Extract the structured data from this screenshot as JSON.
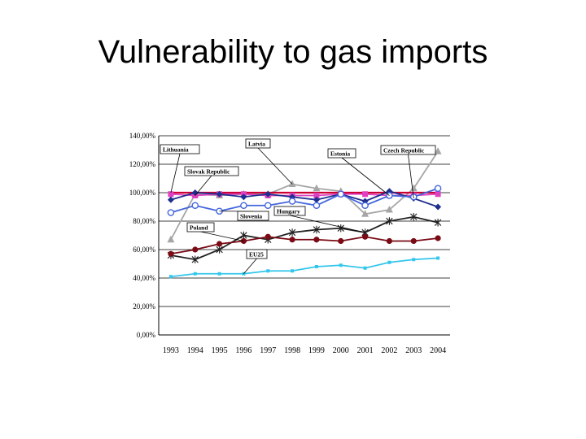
{
  "slide": {
    "title": "Vulnerability to gas imports"
  },
  "chart_data": {
    "type": "line",
    "title": "",
    "xlabel": "",
    "ylabel": "",
    "ylim": [
      0,
      140
    ],
    "grid": true,
    "y_ticks": [
      0,
      20,
      40,
      60,
      80,
      100,
      120,
      140
    ],
    "y_tick_labels": [
      "0,00%",
      "20,00%",
      "40,00%",
      "60,00%",
      "80,00%",
      "100,00%",
      "120,00%",
      "140,00%"
    ],
    "categories": [
      "1993",
      "1994",
      "1995",
      "1996",
      "1997",
      "1998",
      "1999",
      "2000",
      "2001",
      "2002",
      "2003",
      "2004"
    ],
    "series": [
      {
        "name": "Latvia",
        "color": "#a6a6a6",
        "marker": "triangle",
        "values": [
          67,
          99,
          98,
          99,
          99,
          106,
          103,
          101,
          85,
          88,
          103,
          129
        ]
      },
      {
        "name": "Lithuania",
        "color": "#cc0033",
        "marker": "none",
        "values": [
          100,
          100,
          100,
          100,
          100,
          100,
          100,
          100,
          100,
          100,
          100,
          100
        ]
      },
      {
        "name": "Slovak Republic",
        "color": "#e040c0",
        "marker": "square",
        "values": [
          99,
          98,
          99,
          99,
          98,
          98,
          98,
          99,
          99,
          98,
          98,
          99
        ]
      },
      {
        "name": "Czech Republic",
        "color": "#1f2f8f",
        "marker": "diamond",
        "values": [
          95,
          100,
          99,
          97,
          99,
          97,
          95,
          99,
          94,
          101,
          96,
          90
        ]
      },
      {
        "name": "Estonia",
        "color": "#4466dd",
        "marker": "circle-open",
        "values": [
          86,
          91,
          87,
          91,
          91,
          94,
          91,
          99,
          91,
          98,
          97,
          103
        ]
      },
      {
        "name": "Hungary",
        "color": "#222222",
        "marker": "star",
        "values": [
          56,
          53,
          60,
          70,
          67,
          72,
          74,
          75,
          72,
          80,
          83,
          79
        ]
      },
      {
        "name": "Poland",
        "color": "#7a0a14",
        "marker": "circle",
        "values": [
          57,
          60,
          64,
          66,
          69,
          67,
          67,
          66,
          69,
          66,
          66,
          68
        ]
      },
      {
        "name": "EU25",
        "color": "#33c6ec",
        "marker": "square-small",
        "values": [
          41,
          43,
          43,
          43,
          45,
          45,
          48,
          49,
          47,
          51,
          53,
          54
        ]
      }
    ],
    "annotations": [
      {
        "text": "Lithuania",
        "series": "Lithuania"
      },
      {
        "text": "Slovak Republic",
        "series": "Slovak Republic"
      },
      {
        "text": "Latvia",
        "series": "Latvia"
      },
      {
        "text": "Estonia",
        "series": "Estonia"
      },
      {
        "text": "Czech Republic",
        "series": "Czech Republic"
      },
      {
        "text": "Hungary",
        "series": "Hungary"
      },
      {
        "text": "Slovenia",
        "series": "Estonia"
      },
      {
        "text": "Poland",
        "series": "Poland"
      },
      {
        "text": "EU25",
        "series": "EU25"
      }
    ]
  }
}
